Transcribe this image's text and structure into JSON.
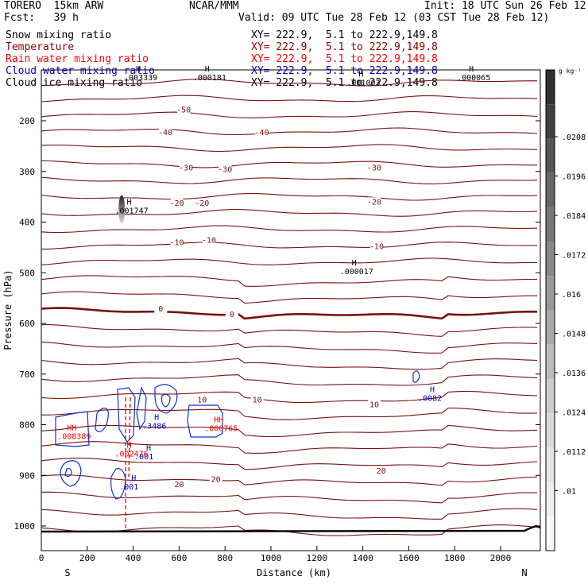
{
  "header": {
    "model": "TORERO  15km ARW",
    "org": "NCAR/MMM",
    "init": "Init: 18 UTC Sun 26 Feb 12",
    "fcst": "Fcst:   39 h",
    "valid": "Valid: 09 UTC Tue 28 Feb 12 (03 CST Tue 28 Feb 12)",
    "fields": [
      {
        "name": "Snow mixing ratio",
        "range": "XY= 222.9,  5.1 to 222.9,149.8",
        "color": "#000000"
      },
      {
        "name": "Temperature",
        "range": "XY= 222.9,  5.1 to 222.9,149.8",
        "color": "#8b0000"
      },
      {
        "name": "Rain water mixing ratio",
        "range": "XY= 222.9,  5.1 to 222.9,149.8",
        "color": "#ff0000"
      },
      {
        "name": "Cloud water mixing ratio",
        "range": "XY= 222.9,  5.1 to 222.9,149.8",
        "color": "#0000cc"
      },
      {
        "name": "Cloud ice mixing ratio",
        "range": "XY= 222.9,  5.1 to 222.9,149.8",
        "color": "#000000"
      }
    ]
  },
  "chart_data": {
    "type": "cross-section contour",
    "xlabel": "Distance (km)",
    "ylabel": "Pressure (hPa)",
    "xlim": [
      0,
      2200
    ],
    "ylim": [
      1050,
      100
    ],
    "x_ticks": [
      0,
      200,
      400,
      600,
      800,
      1000,
      1200,
      1400,
      1600,
      1800,
      2000
    ],
    "y_ticks": [
      200,
      300,
      400,
      500,
      600,
      700,
      800,
      900,
      1000
    ],
    "y_tick_labels": [
      "200",
      "300",
      "400",
      "500",
      "600",
      "700",
      "800",
      "900",
      "1000"
    ],
    "x_end_labels": {
      "left": "S",
      "right": "N"
    },
    "temperature_contour_labels": [
      {
        "label": "-50",
        "x": 620,
        "p": 180
      },
      {
        "label": "-40",
        "x": 540,
        "p": 225
      },
      {
        "label": "-40",
        "x": 960,
        "p": 225
      },
      {
        "label": "-30",
        "x": 630,
        "p": 295
      },
      {
        "label": "-30",
        "x": 800,
        "p": 298
      },
      {
        "label": "-30",
        "x": 1450,
        "p": 295
      },
      {
        "label": "-20",
        "x": 590,
        "p": 365
      },
      {
        "label": "-20",
        "x": 700,
        "p": 365
      },
      {
        "label": "-20",
        "x": 1450,
        "p": 362
      },
      {
        "label": "-10",
        "x": 590,
        "p": 442
      },
      {
        "label": "-10",
        "x": 730,
        "p": 438
      },
      {
        "label": "-10",
        "x": 1460,
        "p": 450
      },
      {
        "label": "0",
        "x": 520,
        "p": 573
      },
      {
        "label": "0",
        "x": 830,
        "p": 584
      },
      {
        "label": "10",
        "x": 700,
        "p": 753
      },
      {
        "label": "10",
        "x": 940,
        "p": 753
      },
      {
        "label": "10",
        "x": 1450,
        "p": 762
      },
      {
        "label": "20",
        "x": 600,
        "p": 920
      },
      {
        "label": "20",
        "x": 760,
        "p": 910
      },
      {
        "label": "20",
        "x": 1480,
        "p": 893
      }
    ],
    "extrema_labels": [
      {
        "mark": "H",
        "value": ".001747",
        "x": 320,
        "p": 375,
        "color": "#000000"
      },
      {
        "mark": "H",
        "value": ".000017",
        "x": 1300,
        "p": 495,
        "color": "#000000"
      },
      {
        "mark": "H",
        "value": ".000181",
        "x": 660,
        "p": 112,
        "color": "#000000"
      },
      {
        "mark": "H",
        "value": ".001003",
        "x": 1330,
        "p": 122,
        "color": "#000000"
      },
      {
        "mark": "H",
        "value": ".000065",
        "x": 1810,
        "p": 112,
        "color": "#000000"
      },
      {
        "mark": "H",
        "value": ".003339",
        "x": 360,
        "p": 112,
        "color": "#000000"
      },
      {
        "mark": "H",
        "value": ".0082",
        "x": 1640,
        "p": 745,
        "color": "#0000cc"
      },
      {
        "mark": "H",
        "value": ".3486",
        "x": 440,
        "p": 800,
        "color": "#0000cc"
      },
      {
        "mark": "H",
        "value": ".001",
        "x": 405,
        "p": 860,
        "color": "#0000cc"
      },
      {
        "mark": "H",
        "value": ".001",
        "x": 340,
        "p": 920,
        "color": "#0000cc"
      },
      {
        "mark": "HH",
        "value": ".008389",
        "x": 70,
        "p": 820,
        "color": "#ff0000"
      },
      {
        "mark": "HH",
        "value": ".000765",
        "x": 710,
        "p": 805,
        "color": "#ff0000"
      },
      {
        "mark": "H",
        "value": ".002476",
        "x": 320,
        "p": 855,
        "color": "#ff0000"
      }
    ],
    "colorbar": {
      "unit": "g kg⁻¹",
      "tick_labels": [
        ".0208",
        ".0196",
        ".0184",
        ".0172",
        ".016",
        ".0148",
        ".0136",
        ".0124",
        ".0112",
        ".01"
      ],
      "colors": [
        "#303030",
        "#404040",
        "#555555",
        "#666666",
        "#777777",
        "#888888",
        "#999999",
        "#aaaaaa",
        "#bbbbbb",
        "#cccccc",
        "#d8d8d8",
        "#e4e4e4",
        "#eeeeee",
        "#f8f8f8"
      ]
    }
  }
}
